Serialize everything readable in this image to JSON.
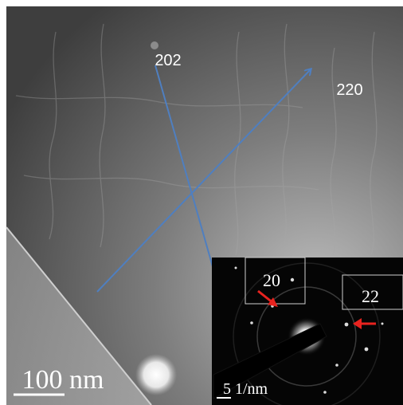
{
  "micrograph": {
    "direction_labels": [
      "202",
      "220"
    ],
    "scale_bar": {
      "label": "100 nm"
    }
  },
  "diffraction_inset": {
    "spot_labels": [
      "20",
      "22"
    ],
    "scale_bar": {
      "label": "5 1/nm"
    }
  },
  "colors": {
    "arrow_blue": "#4f7fc0",
    "marker_red": "#e8231f",
    "label_white": "#ffffff",
    "inset_background": "#050505"
  }
}
